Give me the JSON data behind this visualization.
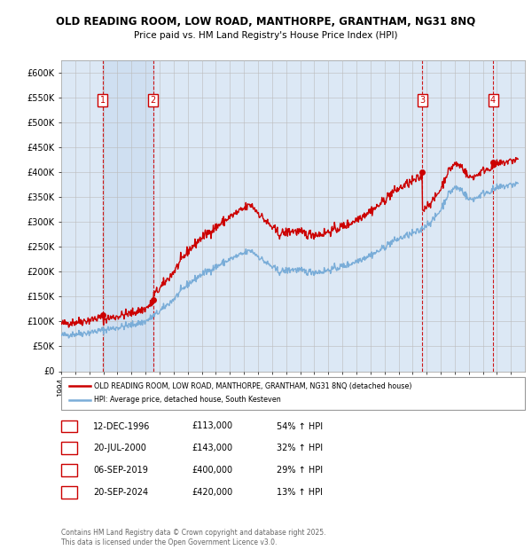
{
  "title_line1": "OLD READING ROOM, LOW ROAD, MANTHORPE, GRANTHAM, NG31 8NQ",
  "title_line2": "Price paid vs. HM Land Registry's House Price Index (HPI)",
  "ylim": [
    0,
    625000
  ],
  "yticks": [
    0,
    50000,
    100000,
    150000,
    200000,
    250000,
    300000,
    350000,
    400000,
    450000,
    500000,
    550000,
    600000
  ],
  "ytick_labels": [
    "£0",
    "£50K",
    "£100K",
    "£150K",
    "£200K",
    "£250K",
    "£300K",
    "£350K",
    "£400K",
    "£450K",
    "£500K",
    "£550K",
    "£600K"
  ],
  "xlim_start": 1994.0,
  "xlim_end": 2027.0,
  "transactions": [
    {
      "num": 1,
      "date": "12-DEC-1996",
      "price": 113000,
      "year": 1996.95,
      "hpi_pct": "54%",
      "label": "1"
    },
    {
      "num": 2,
      "date": "20-JUL-2000",
      "price": 143000,
      "year": 2000.55,
      "hpi_pct": "32%",
      "label": "2"
    },
    {
      "num": 3,
      "date": "06-SEP-2019",
      "price": 400000,
      "year": 2019.68,
      "hpi_pct": "29%",
      "label": "3"
    },
    {
      "num": 4,
      "date": "20-SEP-2024",
      "price": 420000,
      "year": 2024.72,
      "hpi_pct": "13%",
      "label": "4"
    }
  ],
  "transaction_color": "#cc0000",
  "hpi_color": "#7aadd8",
  "background_color": "#dce8f5",
  "grid_color": "#bbbbbb",
  "footer_text": "Contains HM Land Registry data © Crown copyright and database right 2025.\nThis data is licensed under the Open Government Licence v3.0.",
  "legend_label_red": "OLD READING ROOM, LOW ROAD, MANTHORPE, GRANTHAM, NG31 8NQ (detached house)",
  "legend_label_blue": "HPI: Average price, detached house, South Kesteven",
  "table_rows": [
    [
      "1",
      "12-DEC-1996",
      "£113,000",
      "54% ↑ HPI"
    ],
    [
      "2",
      "20-JUL-2000",
      "£143,000",
      "32% ↑ HPI"
    ],
    [
      "3",
      "06-SEP-2019",
      "£400,000",
      "29% ↑ HPI"
    ],
    [
      "4",
      "20-SEP-2024",
      "£420,000",
      "13% ↑ HPI"
    ]
  ]
}
